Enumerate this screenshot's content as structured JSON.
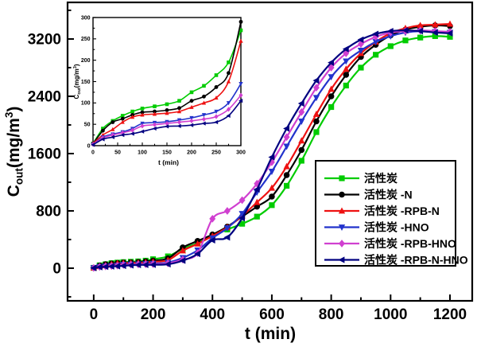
{
  "figure": {
    "background": "#ffffff",
    "frame_color": "#000000"
  },
  "chart_data": [
    {
      "id": "main",
      "type": "line",
      "title": "",
      "xlabel": "t (min)",
      "ylabel": "Cout(mg/m3)",
      "ylabel_parts": [
        {
          "t": "C"
        },
        {
          "t": "out",
          "script": "sub"
        },
        {
          "t": "(mg/m"
        },
        {
          "t": "3",
          "script": "sup"
        },
        {
          "t": ")"
        }
      ],
      "xlim": [
        -88,
        1275
      ],
      "ylim": [
        -456,
        3711
      ],
      "grid": false,
      "x_major_ticks": [
        0,
        200,
        400,
        600,
        800,
        1000,
        1200
      ],
      "x_minor_ticks": [
        100,
        300,
        500,
        700,
        900,
        1100
      ],
      "y_major_ticks": [
        0,
        800,
        1600,
        2400,
        3200
      ],
      "y_minor_ticks": [
        -400,
        400,
        1200,
        2000,
        2800,
        3600
      ],
      "x": [
        0,
        20,
        40,
        60,
        80,
        100,
        125,
        150,
        175,
        200,
        250,
        300,
        350,
        400,
        450,
        500,
        550,
        600,
        650,
        700,
        750,
        800,
        850,
        900,
        950,
        1000,
        1050,
        1100,
        1150,
        1200
      ],
      "series": [
        {
          "name": "活性炭",
          "id": "ac",
          "color": "#00cc00",
          "marker": "square",
          "values": [
            5,
            40,
            55,
            70,
            78,
            85,
            90,
            95,
            105,
            125,
            165,
            270,
            350,
            450,
            540,
            620,
            720,
            880,
            1150,
            1500,
            1900,
            2250,
            2550,
            2800,
            2980,
            3100,
            3180,
            3220,
            3240,
            3230
          ]
        },
        {
          "name": "活性炭 -N",
          "id": "ac-n",
          "color": "#000000",
          "marker": "circle",
          "values": [
            5,
            35,
            55,
            65,
            72,
            78,
            81,
            85,
            95,
            105,
            137,
            290,
            380,
            470,
            580,
            720,
            860,
            1000,
            1300,
            1650,
            2050,
            2400,
            2700,
            2950,
            3120,
            3250,
            3330,
            3370,
            3390,
            3380
          ]
        },
        {
          "name": "活性炭 -RPB-N",
          "id": "ac-rpb-n",
          "color": "#ee1111",
          "marker": "triangle-up",
          "values": [
            5,
            25,
            38,
            55,
            67,
            72,
            74,
            76,
            82,
            90,
            112,
            245,
            340,
            450,
            570,
            730,
            920,
            1120,
            1420,
            1780,
            2150,
            2500,
            2780,
            3000,
            3160,
            3280,
            3350,
            3390,
            3400,
            3410
          ]
        },
        {
          "name": "活性炭 -HNO",
          "id": "ac-hno",
          "color": "#2233cc",
          "marker": "triangle-down",
          "values": [
            3,
            20,
            25,
            30,
            38,
            50,
            53,
            56,
            60,
            65,
            80,
            145,
            250,
            420,
            560,
            760,
            1060,
            1350,
            1700,
            2050,
            2380,
            2670,
            2890,
            3040,
            3160,
            3240,
            3290,
            3310,
            3300,
            3290
          ]
        },
        {
          "name": "活性炭 -RPB-HNO",
          "id": "ac-rpb-hno",
          "color": "#d040d0",
          "marker": "diamond",
          "values": [
            3,
            18,
            25,
            30,
            35,
            45,
            49,
            52,
            55,
            57,
            68,
            120,
            210,
            690,
            800,
            950,
            1180,
            1480,
            1830,
            2180,
            2520,
            2800,
            3000,
            3130,
            3230,
            3290,
            3310,
            3320,
            3310,
            3300
          ]
        },
        {
          "name": "活性炭 -RPB-N-HNO",
          "id": "ac-rpb-n-hno",
          "color": "#000080",
          "marker": "triangle-left",
          "values": [
            2,
            15,
            20,
            25,
            28,
            33,
            40,
            45,
            47,
            48,
            55,
            105,
            200,
            390,
            430,
            700,
            1100,
            1550,
            1950,
            2300,
            2620,
            2870,
            3060,
            3190,
            3270,
            3310,
            3320,
            3310,
            3290,
            3280
          ]
        }
      ]
    },
    {
      "id": "inset",
      "type": "line",
      "title": "",
      "xlabel": "t (min)",
      "ylabel": "Cout(mg/m3)",
      "ylabel_parts": [
        {
          "t": "C"
        },
        {
          "t": "out",
          "script": "sub"
        },
        {
          "t": "(mg/m"
        },
        {
          "t": "3",
          "script": "sup"
        },
        {
          "t": ")"
        }
      ],
      "xlim": [
        0,
        300
      ],
      "ylim": [
        0,
        300
      ],
      "grid": false,
      "x_major_ticks": [
        0,
        50,
        100,
        150,
        200,
        250,
        300
      ],
      "x_minor_ticks": [
        25,
        75,
        125,
        175,
        225,
        275
      ],
      "y_major_ticks": [
        0,
        50,
        100,
        150,
        200,
        250,
        300
      ],
      "y_minor_ticks": [
        25,
        75,
        125,
        175,
        225,
        275
      ],
      "x": [
        0,
        20,
        40,
        60,
        80,
        100,
        125,
        150,
        175,
        200,
        225,
        250,
        275,
        300
      ],
      "series": [
        {
          "name": "活性炭",
          "id": "ac",
          "color": "#00cc00",
          "marker": "square",
          "values": [
            5,
            40,
            58,
            70,
            80,
            87,
            92,
            97,
            105,
            125,
            140,
            165,
            195,
            270
          ]
        },
        {
          "name": "活性炭 -N",
          "id": "ac-n",
          "color": "#000000",
          "marker": "circle",
          "values": [
            5,
            35,
            55,
            63,
            72,
            78,
            80,
            83,
            88,
            105,
            115,
            137,
            170,
            290
          ]
        },
        {
          "name": "活性炭 -RPB-N",
          "id": "ac-rpb-n",
          "color": "#ee1111",
          "marker": "triangle-up",
          "values": [
            5,
            25,
            38,
            55,
            67,
            72,
            74,
            76,
            80,
            90,
            100,
            112,
            150,
            245
          ]
        },
        {
          "name": "活性炭 -HNO",
          "id": "ac-hno",
          "color": "#2233cc",
          "marker": "triangle-down",
          "values": [
            3,
            20,
            27,
            32,
            40,
            52,
            54,
            56,
            60,
            65,
            72,
            80,
            100,
            145
          ]
        },
        {
          "name": "活性炭 -RPB-HNO",
          "id": "ac-rpb-hno",
          "color": "#d040d0",
          "marker": "diamond",
          "values": [
            3,
            18,
            25,
            30,
            36,
            46,
            49,
            52,
            55,
            58,
            62,
            68,
            85,
            118
          ]
        },
        {
          "name": "活性炭 -RPB-N-HNO",
          "id": "ac-rpb-n-hno",
          "color": "#000080",
          "marker": "triangle-left",
          "values": [
            2,
            15,
            20,
            25,
            28,
            33,
            40,
            45,
            46,
            48,
            52,
            55,
            70,
            105
          ]
        }
      ]
    }
  ]
}
